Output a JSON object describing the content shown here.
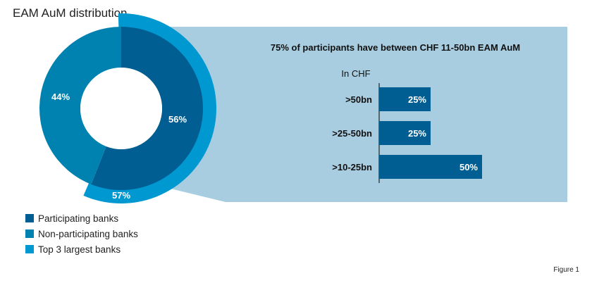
{
  "title": "EAM AuM distribution",
  "figure_label": "Figure 1",
  "colors": {
    "participating": "#005e92",
    "non_participating": "#0082b1",
    "top3": "#0098d1",
    "panel": "#a9cde0",
    "bar": "#005e92",
    "axis": "#222222"
  },
  "chart_data": [
    {
      "type": "pie",
      "variant": "donut",
      "series": [
        {
          "name": "Participating banks",
          "value": 56,
          "label": "56%"
        },
        {
          "name": "Non-participating banks",
          "value": 44,
          "label": "44%"
        }
      ],
      "outer_ring": {
        "name": "Top 3 largest banks",
        "value": 57,
        "label": "57%"
      },
      "legend": [
        "Participating banks",
        "Non-participating banks",
        "Top 3 largest banks"
      ],
      "legend_placement": "bottom-left"
    },
    {
      "type": "bar",
      "orientation": "horizontal",
      "title": "75% of participants have between CHF 11-50bn EAM AuM",
      "unit_label": "In CHF",
      "categories": [
        ">50bn",
        ">25-50bn",
        ">10-25bn"
      ],
      "values": [
        25,
        25,
        50
      ],
      "value_labels": [
        "25%",
        "25%",
        "50%"
      ],
      "xlim": [
        0,
        50
      ],
      "grid": false
    }
  ]
}
